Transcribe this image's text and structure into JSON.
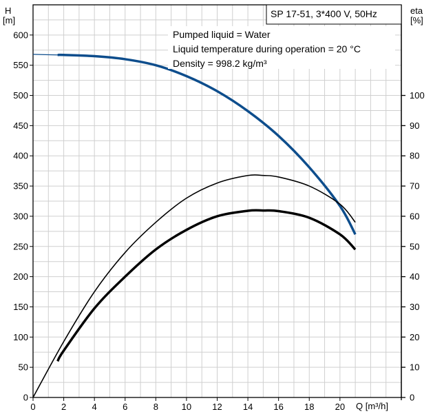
{
  "chart_data": {
    "type": "line",
    "title": "SP 17-51, 3*400 V, 50Hz",
    "annotations": [
      "Pumped liquid = Water",
      "Liquid temperature during operation = 20 °C",
      "Density = 998.2 kg/m³"
    ],
    "xlabel": "Q [m³/h]",
    "ylabel_left": [
      "H",
      "[m]"
    ],
    "ylabel_right": [
      "eta",
      "[%]"
    ],
    "xlim": [
      0,
      24
    ],
    "ylim_left": [
      0,
      650
    ],
    "ylim_right": [
      0,
      130
    ],
    "grid": true,
    "x_ticks": [
      0,
      2,
      4,
      6,
      8,
      10,
      12,
      14,
      16,
      18,
      20
    ],
    "y_left_ticks": [
      0,
      50,
      100,
      150,
      200,
      250,
      300,
      350,
      400,
      450,
      500,
      550,
      600
    ],
    "y_right_ticks": [
      0,
      10,
      20,
      30,
      40,
      50,
      60,
      70,
      80,
      90,
      100
    ],
    "series": [
      {
        "axis": "left",
        "color": "#0d4d8c",
        "values_x": [
          0,
          1.6,
          2,
          4,
          6,
          8,
          10,
          12,
          14,
          16,
          18,
          20,
          21
        ],
        "values_y": [
          568,
          567,
          567,
          565,
          560,
          550,
          532,
          507,
          474,
          433,
          381,
          317,
          270
        ]
      },
      {
        "axis": "right",
        "color": "#000000",
        "values_x": [
          0,
          2,
          4,
          6,
          8,
          10,
          12,
          14,
          15,
          16,
          18,
          20,
          21
        ],
        "values_y": [
          0,
          18.5,
          35,
          48,
          58,
          66,
          71,
          73.5,
          73.5,
          73,
          70,
          64,
          58
        ]
      },
      {
        "axis": "right",
        "color": "#000000",
        "values_x": [
          1.6,
          2,
          4,
          6,
          8,
          10,
          12,
          14,
          15,
          16,
          18,
          20,
          21
        ],
        "values_y": [
          12,
          15.5,
          29.5,
          40,
          49,
          55.5,
          60,
          61.8,
          61.9,
          61.7,
          59.5,
          54,
          49
        ]
      }
    ]
  }
}
